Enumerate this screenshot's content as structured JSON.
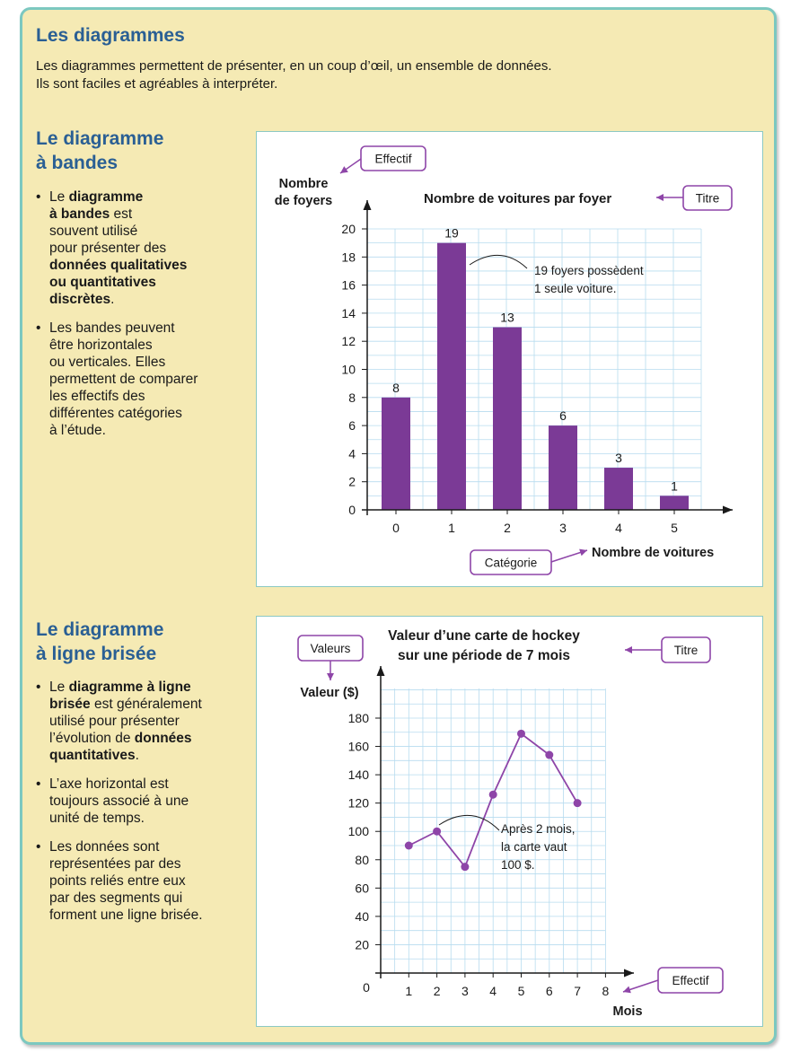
{
  "main_title": "Les diagrammes",
  "intro": [
    "Les diagrammes permettent de présenter, en un coup d’œil, un ensemble de données.",
    "Ils sont faciles et agréables à interpréter."
  ],
  "bar_section": {
    "heading": [
      "Le diagramme",
      "à bandes"
    ],
    "bullets": [
      [
        {
          "t": "Le ",
          "b": false
        },
        {
          "t": "diagramme",
          "b": true
        },
        {
          "br": true
        },
        {
          "t": "à bandes",
          "b": true
        },
        {
          "t": " est",
          "b": false
        },
        {
          "br": true
        },
        {
          "t": "souvent utilisé",
          "b": false
        },
        {
          "br": true
        },
        {
          "t": "pour présenter des",
          "b": false
        },
        {
          "br": true
        },
        {
          "t": "données qualitatives",
          "b": true
        },
        {
          "br": true
        },
        {
          "t": "ou quantitatives",
          "b": true
        },
        {
          "br": true
        },
        {
          "t": "discrètes",
          "b": true
        },
        {
          "t": ".",
          "b": false
        }
      ],
      [
        {
          "t": "Les bandes peuvent",
          "b": false
        },
        {
          "br": true
        },
        {
          "t": "être horizontales",
          "b": false
        },
        {
          "br": true
        },
        {
          "t": "ou verticales. Elles",
          "b": false
        },
        {
          "br": true
        },
        {
          "t": "permettent de comparer",
          "b": false
        },
        {
          "br": true
        },
        {
          "t": "les effectifs des",
          "b": false
        },
        {
          "br": true
        },
        {
          "t": "différentes catégories",
          "b": false
        },
        {
          "br": true
        },
        {
          "t": "à l’étude.",
          "b": false
        }
      ]
    ]
  },
  "line_section": {
    "heading": [
      "Le diagramme",
      "à ligne brisée"
    ],
    "bullets": [
      [
        {
          "t": "Le ",
          "b": false
        },
        {
          "t": "diagramme à ligne",
          "b": true
        },
        {
          "br": true
        },
        {
          "t": "brisée",
          "b": true
        },
        {
          "t": " est généralement",
          "b": false
        },
        {
          "br": true
        },
        {
          "t": "utilisé pour présenter",
          "b": false
        },
        {
          "br": true
        },
        {
          "t": "l’évolution de ",
          "b": false
        },
        {
          "t": "données",
          "b": true
        },
        {
          "br": true
        },
        {
          "t": "quantitatives",
          "b": true
        },
        {
          "t": ".",
          "b": false
        }
      ],
      [
        {
          "t": "L’axe horizontal est",
          "b": false
        },
        {
          "br": true
        },
        {
          "t": "toujours associé à une",
          "b": false
        },
        {
          "br": true
        },
        {
          "t": "unité de temps.",
          "b": false
        }
      ],
      [
        {
          "t": "Les données sont",
          "b": false
        },
        {
          "br": true
        },
        {
          "t": "représentées par des",
          "b": false
        },
        {
          "br": true
        },
        {
          "t": "points reliés entre eux",
          "b": false
        },
        {
          "br": true
        },
        {
          "t": "par des segments qui",
          "b": false
        },
        {
          "br": true
        },
        {
          "t": "forment une ligne brisée.",
          "b": false
        }
      ]
    ]
  },
  "colors": {
    "panel_bg": "#f5eab4",
    "panel_border": "#7cc8c0",
    "heading": "#2a5f94",
    "bars": "#7b3a96",
    "line": "#8e45a8",
    "callout": "#8e45a8",
    "grid": "#b7dcef"
  },
  "chart_data": [
    {
      "type": "bar",
      "title": "Nombre de voitures par foyer",
      "xlabel": "Nombre de voitures",
      "ylabel": [
        "Nombre",
        "de foyers"
      ],
      "categories": [
        "0",
        "1",
        "2",
        "3",
        "4",
        "5"
      ],
      "values": [
        8,
        19,
        13,
        6,
        3,
        1
      ],
      "data_labels": [
        "8",
        "19",
        "13",
        "6",
        "3",
        "1"
      ],
      "yticks": [
        0,
        2,
        4,
        6,
        8,
        10,
        12,
        14,
        16,
        18,
        20
      ],
      "ylim": [
        0,
        20
      ],
      "grid": true,
      "annotation": {
        "lines": [
          "19 foyers possèdent",
          "1 seule voiture."
        ],
        "category": "1",
        "value": 19
      },
      "callouts": {
        "y": "Effectif",
        "title": "Titre",
        "x": "Catégorie"
      }
    },
    {
      "type": "line",
      "title": [
        "Valeur d’une carte de hockey",
        "sur une période de 7 mois"
      ],
      "xlabel": "Mois",
      "ylabel": "Valeur ($)",
      "x": [
        1,
        2,
        3,
        4,
        5,
        6,
        7
      ],
      "y": [
        90,
        100,
        75,
        126,
        169,
        154,
        120
      ],
      "xticks": [
        "1",
        "2",
        "3",
        "4",
        "5",
        "6",
        "7",
        "8"
      ],
      "yticks": [
        20,
        40,
        60,
        80,
        100,
        120,
        140,
        160,
        180
      ],
      "origin_label": "0",
      "xlim": [
        0,
        8
      ],
      "ylim": [
        0,
        180
      ],
      "grid": true,
      "annotation": {
        "lines": [
          "Après 2 mois,",
          "la carte vaut",
          "100 $."
        ],
        "x": 2,
        "y": 100
      },
      "callouts": {
        "y": "Valeurs",
        "title": "Titre",
        "x": "Effectif"
      }
    }
  ]
}
